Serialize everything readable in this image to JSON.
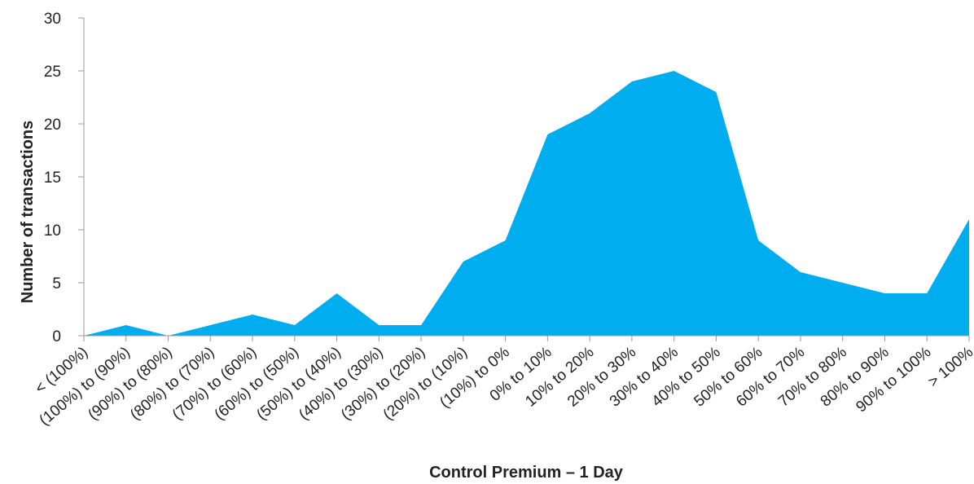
{
  "chart_data": {
    "type": "area",
    "x_label": "Control Premium – 1 Day",
    "y_label": "Number of transactions",
    "categories": [
      "< (100%)",
      "(100%) to (90%)",
      "(90%) to (80%)",
      "(80%) to (70%)",
      "(70%) to (60%)",
      "(60%) to (50%)",
      "(50%) to (40%)",
      "(40%) to (30%)",
      "(30%) to (20%)",
      "(20%) to (10%)",
      "(10%) to 0%",
      "0% to 10%",
      "10% to 20%",
      "20% to 30%",
      "30% to 40%",
      "40% to 50%",
      "50% to 60%",
      "60% to 70%",
      "70% to 80%",
      "80% to 90%",
      "90% to 100%",
      "> 100%"
    ],
    "values": [
      0,
      1,
      0,
      1,
      2,
      1,
      4,
      1,
      1,
      7,
      9,
      19,
      21,
      24,
      25,
      23,
      9,
      6,
      5,
      4,
      4,
      11
    ],
    "color": "#00aeef",
    "ylim": [
      0,
      30
    ],
    "yticks": [
      0,
      5,
      10,
      15,
      20,
      25,
      30
    ]
  }
}
